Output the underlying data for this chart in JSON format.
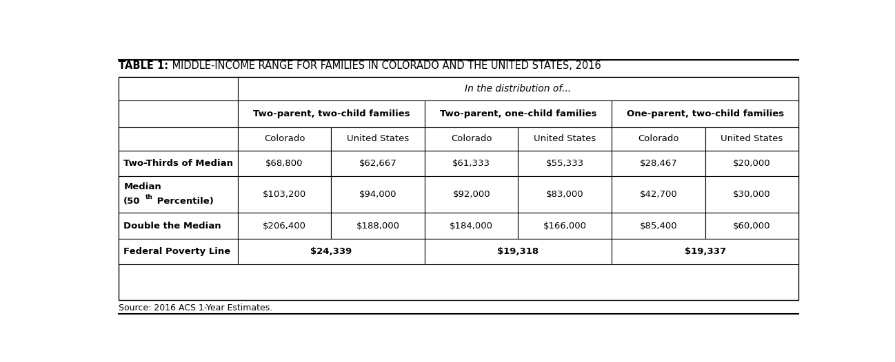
{
  "title_bold": "TABLE 1:",
  "title_rest": " MIDDLE-INCOME RANGE FOR FAMILIES IN COLORADO AND THE UNITED STATES, 2016",
  "source": "Source: 2016 ACS 1-Year Estimates.",
  "header_dist": "In the distribution of...",
  "col_groups": [
    "Two-parent, two-child families",
    "Two-parent, one-child families",
    "One-parent, two-child families"
  ],
  "sub_cols": [
    "Colorado",
    "United States"
  ],
  "row_labels": [
    "Two-Thirds of Median",
    "Median\n(50th Percentile)",
    "Double the Median",
    "Federal Poverty Line"
  ],
  "data": [
    [
      "$68,800",
      "$62,667",
      "$61,333",
      "$55,333",
      "$28,467",
      "$20,000"
    ],
    [
      "$103,200",
      "$94,000",
      "$92,000",
      "$83,000",
      "$42,700",
      "$30,000"
    ],
    [
      "$206,400",
      "$188,000",
      "$184,000",
      "$166,000",
      "$85,400",
      "$60,000"
    ],
    [
      "$24,339",
      "",
      "$19,318",
      "",
      "$19,337",
      ""
    ]
  ],
  "bg_color": "#ffffff",
  "border_color": "#000000",
  "text_color": "#000000"
}
